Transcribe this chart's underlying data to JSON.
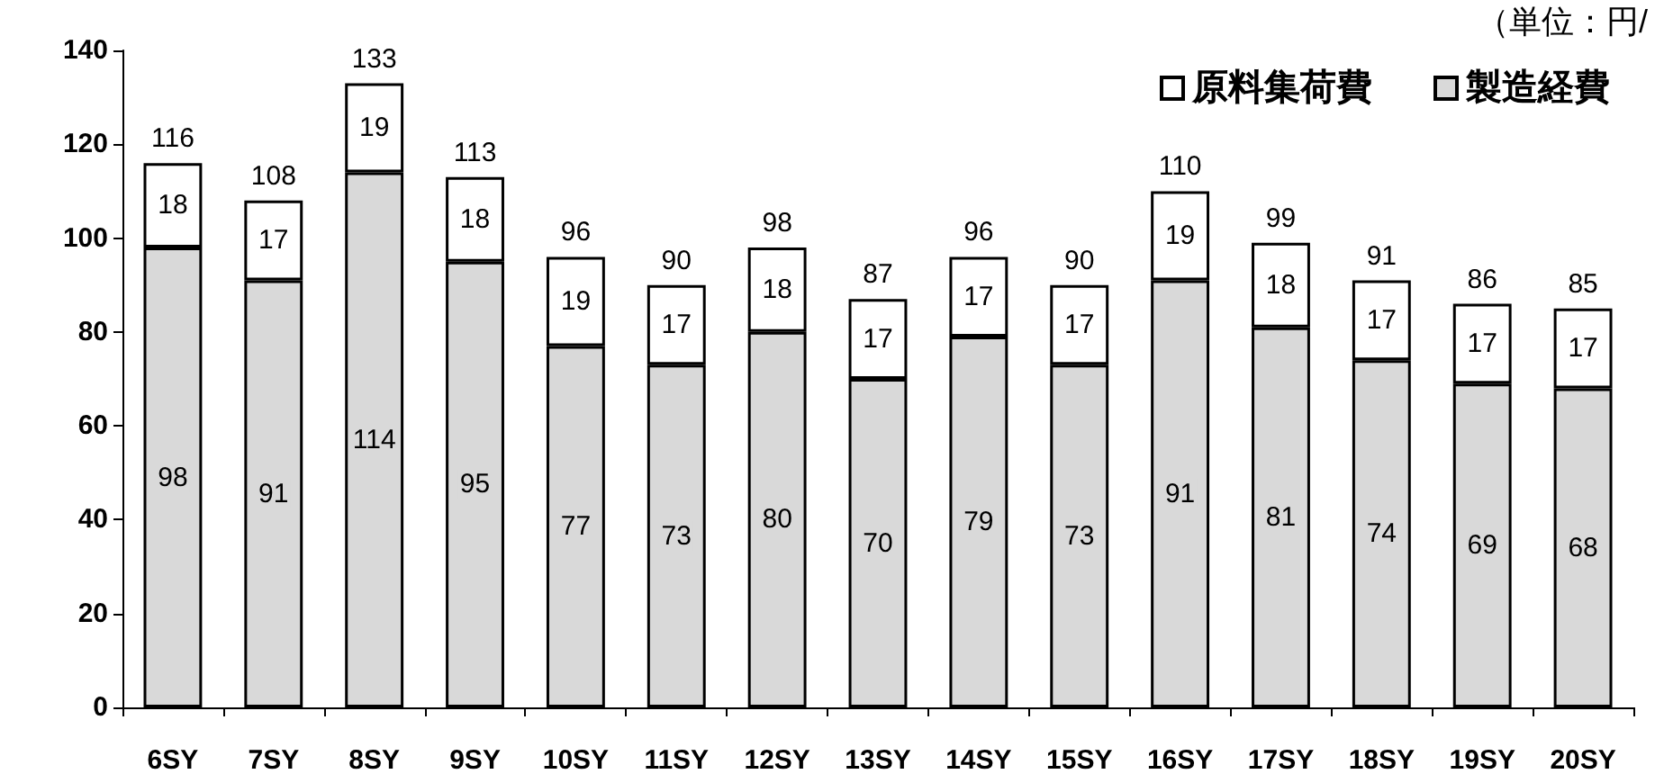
{
  "chart_data": {
    "type": "bar",
    "stacked": true,
    "data_labels": true,
    "legend": "top right",
    "grid": false,
    "annotations": [
      "（単位：円/"
    ],
    "categories": [
      "6SY",
      "7SY",
      "8SY",
      "9SY",
      "10SY",
      "11SY",
      "12SY",
      "13SY",
      "14SY",
      "15SY",
      "16SY",
      "17SY",
      "18SY",
      "19SY",
      "20SY"
    ],
    "ylim": [
      0,
      140
    ],
    "yticks": [
      0,
      20,
      40,
      60,
      80,
      100,
      120,
      140
    ],
    "series": [
      {
        "name": "製造経費",
        "color": "#d9d9d9",
        "values": [
          98,
          91,
          114,
          95,
          77,
          73,
          80,
          70,
          79,
          73,
          91,
          81,
          74,
          69,
          68
        ]
      },
      {
        "name": "原料集荷費",
        "color": "#ffffff",
        "values": [
          18,
          17,
          19,
          18,
          19,
          17,
          18,
          17,
          17,
          17,
          19,
          18,
          17,
          17,
          17
        ]
      }
    ],
    "totals": [
      "116",
      "108",
      "133",
      "113",
      "96",
      "90",
      "98",
      "87",
      "96",
      "90",
      "110",
      "99",
      "91",
      "86",
      "85"
    ]
  }
}
